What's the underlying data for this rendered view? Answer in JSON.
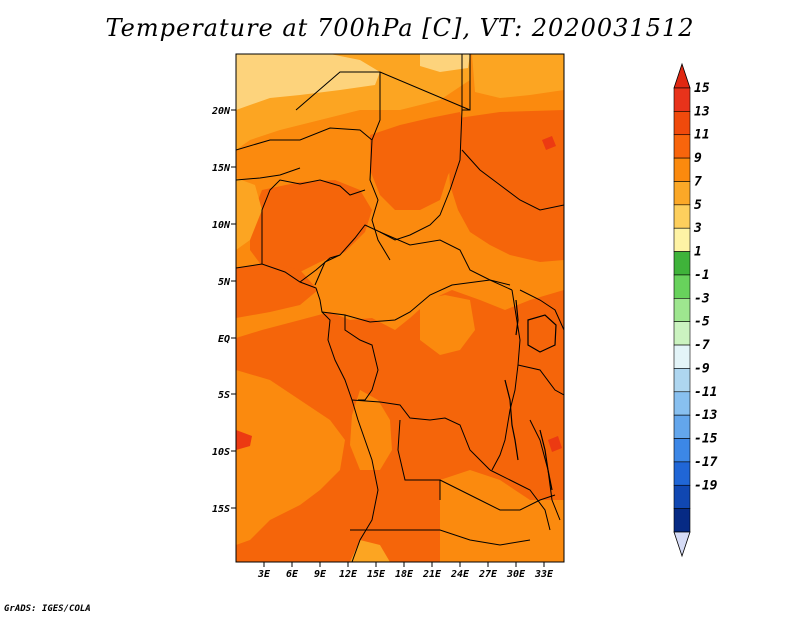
{
  "title": "Temperature at 700hPa [C], VT: 2020031512",
  "footer": "GrADS: IGES/COLA",
  "map": {
    "lat_range": [
      -19,
      24.5
    ],
    "lon_range": [
      0,
      33.5
    ],
    "lat_ticks": [
      "20N",
      "15N",
      "10N",
      "5N",
      "EQ",
      "5S",
      "10S",
      "15S"
    ],
    "lon_ticks": [
      "3E",
      "6E",
      "9E",
      "12E",
      "15E",
      "18E",
      "21E",
      "24E",
      "27E",
      "30E",
      "33E"
    ]
  },
  "colorbar": {
    "labels": [
      "15",
      "13",
      "11",
      "9",
      "7",
      "5",
      "3",
      "1",
      "-1",
      "-3",
      "-5",
      "-7",
      "-9",
      "-11",
      "-13",
      "-15",
      "-17",
      "-19"
    ],
    "colors": [
      "#e8331b",
      "#f04a0c",
      "#f8650c",
      "#fb8a0e",
      "#fba827",
      "#fdcf5d",
      "#fef3a5",
      "#3fb33a",
      "#68d25c",
      "#9ee68f",
      "#cbf3c0",
      "#e3f4f8",
      "#aed6f0",
      "#88c0f0",
      "#63a6ec",
      "#3c87e6",
      "#2066d6",
      "#1047b2",
      "#062a84"
    ],
    "top_arrow_color": "#e02812",
    "bottom_arrow_color": "#d6dcf6"
  },
  "field_colors": {
    "c_5_7": "#fdd37c",
    "c_7_9": "#fca522",
    "c_9_11": "#fb8a0e",
    "c_11_13": "#f5650a",
    "c_13_15": "#ec3a12"
  }
}
